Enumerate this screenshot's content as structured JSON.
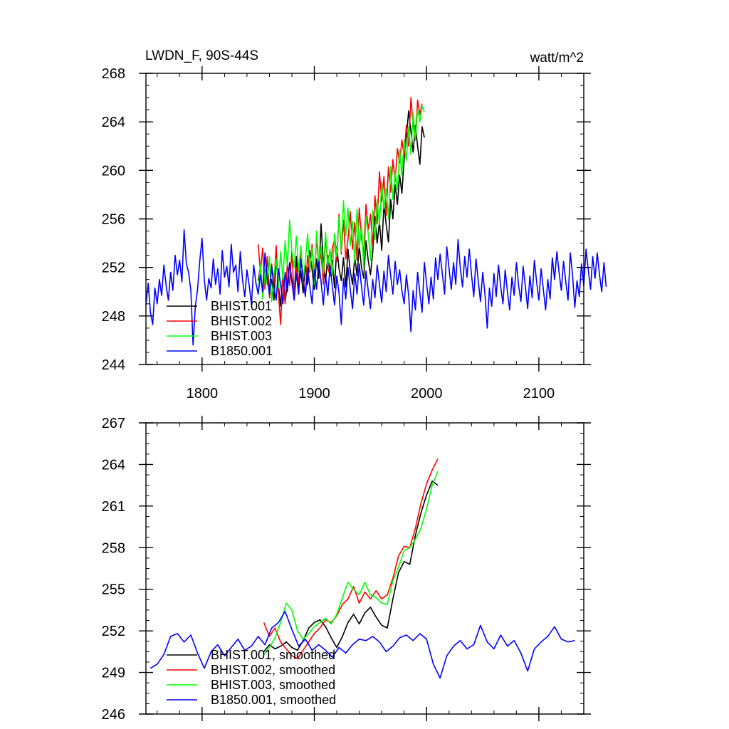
{
  "figure": {
    "left_title": "LWDN_F, 90S-44S",
    "right_title": "watt/m^2"
  },
  "chart_data": [
    {
      "type": "line",
      "title": "LWDN_F, 90S-44S",
      "units": "watt/m^2",
      "xlim": [
        1750,
        2140
      ],
      "ylim": [
        244,
        268
      ],
      "x_ticks": [
        1800,
        1900,
        2000,
        2100
      ],
      "y_ticks": [
        244,
        248,
        252,
        256,
        260,
        264,
        268
      ],
      "legend_position": "bottom-left",
      "series": [
        {
          "name": "BHIST.001",
          "color": "#000000",
          "x_start": 1850,
          "step": 2,
          "values": [
            250.9,
            252.1,
            249.8,
            251.3,
            252.6,
            250.2,
            251.0,
            249.3,
            252.8,
            250.5,
            248.8,
            251.4,
            249.1,
            250.7,
            252.3,
            251.0,
            249.6,
            252.9,
            250.2,
            251.7,
            249.9,
            252.2,
            250.6,
            253.4,
            251.8,
            250.2,
            252.7,
            251.1,
            255.6,
            252.3,
            250.8,
            253.0,
            251.5,
            252.6,
            250.3,
            253.7,
            251.9,
            250.9,
            252.8,
            250.4,
            253.5,
            251.7,
            250.6,
            252.9,
            251.3,
            253.8,
            252.0,
            251.1,
            254.2,
            252.6,
            251.4,
            253.2,
            256.2,
            254.0,
            255.8,
            253.4,
            257.3,
            255.5,
            254.1,
            257.6,
            256.0,
            258.8,
            257.2,
            259.6,
            258.1,
            260.9,
            262.8,
            264.9,
            263.2,
            261.5,
            263.7,
            262.0,
            260.5,
            263.6,
            262.7
          ]
        },
        {
          "name": "BHIST.002",
          "color": "#ff0000",
          "x_start": 1850,
          "step": 2,
          "values": [
            253.9,
            251.6,
            253.6,
            250.2,
            252.9,
            249.5,
            252.3,
            250.6,
            253.8,
            249.9,
            247.3,
            251.5,
            249.0,
            252.4,
            250.5,
            253.3,
            249.6,
            252.0,
            250.7,
            253.5,
            251.2,
            249.7,
            253.0,
            251.6,
            253.9,
            251.1,
            254.4,
            252.2,
            253.2,
            250.6,
            254.6,
            252.0,
            251.3,
            253.6,
            254.3,
            252.5,
            256.4,
            253.1,
            255.9,
            252.7,
            254.3,
            256.6,
            253.5,
            255.7,
            252.6,
            256.9,
            254.4,
            253.1,
            257.2,
            255.1,
            256.4,
            253.8,
            257.9,
            255.6,
            259.9,
            257.4,
            259.5,
            256.3,
            260.3,
            258.2,
            260.9,
            259.1,
            261.8,
            260.6,
            262.5,
            261.2,
            263.7,
            262.0,
            266.0,
            263.8,
            262.5,
            265.8,
            264.6,
            265.5
          ]
        },
        {
          "name": "BHIST.003",
          "color": "#00ff00",
          "x_start": 1850,
          "step": 2,
          "values": [
            250.0,
            252.3,
            249.4,
            251.8,
            250.6,
            252.9,
            249.2,
            251.4,
            252.7,
            250.3,
            253.3,
            251.0,
            254.2,
            252.1,
            255.9,
            253.4,
            252.0,
            254.6,
            251.7,
            253.8,
            250.9,
            252.5,
            254.8,
            251.8,
            253.6,
            250.6,
            255.0,
            252.4,
            253.7,
            251.5,
            254.9,
            252.2,
            253.5,
            251.3,
            254.8,
            252.9,
            256.2,
            253.3,
            257.5,
            254.6,
            256.9,
            253.8,
            255.8,
            252.4,
            256.8,
            253.6,
            255.4,
            252.0,
            256.2,
            254.8,
            252.6,
            256.7,
            254.3,
            257.6,
            255.5,
            259.0,
            256.8,
            258.5,
            256.0,
            260.3,
            257.6,
            259.9,
            258.4,
            261.7,
            259.6,
            262.5,
            260.8,
            263.6,
            261.3,
            264.7,
            262.5,
            265.0,
            264.0,
            265.3,
            264.8
          ]
        },
        {
          "name": "B1850.001",
          "color": "#0000ff",
          "x_start": 1750,
          "step": 2,
          "values": [
            248.9,
            250.7,
            248.3,
            247.3,
            250.3,
            249.0,
            251.0,
            249.7,
            252.2,
            250.5,
            249.3,
            251.6,
            250.1,
            253.0,
            251.4,
            252.6,
            250.8,
            255.1,
            252.3,
            251.6,
            250.1,
            245.6,
            248.8,
            250.2,
            252.6,
            254.4,
            251.0,
            249.3,
            251.1,
            250.3,
            252.7,
            250.6,
            251.9,
            249.8,
            253.4,
            251.2,
            252.1,
            250.4,
            253.9,
            251.6,
            252.2,
            250.0,
            253.3,
            251.0,
            249.6,
            251.8,
            250.5,
            248.9,
            252.2,
            250.7,
            249.8,
            251.4,
            250.0,
            253.2,
            251.1,
            249.8,
            252.1,
            250.3,
            249.3,
            251.9,
            250.6,
            249.0,
            251.6,
            250.0,
            252.4,
            250.8,
            249.3,
            251.5,
            249.8,
            252.7,
            251.0,
            249.6,
            252.0,
            250.4,
            249.0,
            251.8,
            250.2,
            252.5,
            250.8,
            248.9,
            251.4,
            249.7,
            252.1,
            250.5,
            248.9,
            251.3,
            249.9,
            247.3,
            251.1,
            249.4,
            252.0,
            250.2,
            248.6,
            251.5,
            249.8,
            252.3,
            250.4,
            248.9,
            251.7,
            250.1,
            248.6,
            251.0,
            249.5,
            252.2,
            250.6,
            249.1,
            251.7,
            250.0,
            253.0,
            251.3,
            249.8,
            252.5,
            250.6,
            251.8,
            250.1,
            249.0,
            251.4,
            249.7,
            246.7,
            250.1,
            248.5,
            251.6,
            249.9,
            248.3,
            252.4,
            250.7,
            249.0,
            251.2,
            249.4,
            252.8,
            251.0,
            253.1,
            251.5,
            249.8,
            253.7,
            251.9,
            250.2,
            252.4,
            250.6,
            254.3,
            252.0,
            250.4,
            252.9,
            251.2,
            253.5,
            251.4,
            249.6,
            252.7,
            250.9,
            249.2,
            251.6,
            249.8,
            247.0,
            250.3,
            248.8,
            251.5,
            249.6,
            252.2,
            250.4,
            249.0,
            251.8,
            250.0,
            248.5,
            251.2,
            249.7,
            252.4,
            250.5,
            249.2,
            252.1,
            250.4,
            248.6,
            251.3,
            249.5,
            252.6,
            250.8,
            249.3,
            251.9,
            250.2,
            248.5,
            251.0,
            249.4,
            252.8,
            251.0,
            253.3,
            251.6,
            250.1,
            252.5,
            250.8,
            249.3,
            253.2,
            251.4,
            248.7,
            250.9,
            249.6,
            252.3,
            250.5,
            253.5,
            251.8,
            250.2,
            252.9,
            251.1,
            253.2,
            251.4,
            250.0,
            252.4,
            250.4
          ]
        }
      ]
    },
    {
      "type": "line",
      "title": "",
      "xlim": [
        1750,
        2140
      ],
      "ylim": [
        246,
        267
      ],
      "x_ticks": [
        1800,
        1900,
        2000,
        2100
      ],
      "y_ticks": [
        246,
        249,
        252,
        255,
        258,
        261,
        264,
        267
      ],
      "legend_position": "bottom-left",
      "series": [
        {
          "name": "BHIST.001, smoothed",
          "color": "#000000",
          "x": [
            1855,
            1860,
            1865,
            1870,
            1875,
            1880,
            1885,
            1890,
            1895,
            1900,
            1905,
            1910,
            1915,
            1920,
            1925,
            1930,
            1935,
            1940,
            1945,
            1950,
            1955,
            1960,
            1965,
            1970,
            1975,
            1980,
            1985,
            1990,
            1995,
            2000,
            2005,
            2010
          ],
          "y": [
            250.5,
            251.0,
            250.7,
            250.9,
            251.2,
            250.8,
            250.6,
            251.3,
            252.2,
            252.6,
            252.8,
            252.3,
            251.5,
            250.8,
            251.6,
            252.6,
            253.2,
            252.5,
            253.3,
            253.7,
            253.0,
            252.4,
            252.2,
            254.3,
            256.2,
            257.0,
            256.8,
            258.9,
            260.5,
            261.8,
            262.8,
            262.5
          ]
        },
        {
          "name": "BHIST.002, smoothed",
          "color": "#ff0000",
          "x": [
            1855,
            1860,
            1865,
            1870,
            1875,
            1880,
            1885,
            1890,
            1895,
            1900,
            1905,
            1910,
            1915,
            1920,
            1925,
            1930,
            1935,
            1940,
            1945,
            1950,
            1955,
            1960,
            1965,
            1970,
            1975,
            1980,
            1985,
            1990,
            1995,
            2000,
            2005,
            2010
          ],
          "y": [
            252.6,
            251.6,
            252.2,
            251.2,
            250.7,
            250.2,
            250.0,
            250.6,
            251.2,
            251.8,
            252.2,
            252.8,
            252.6,
            253.1,
            253.9,
            254.3,
            255.2,
            254.0,
            254.8,
            254.3,
            254.9,
            254.3,
            254.6,
            255.8,
            257.4,
            258.1,
            258.0,
            259.4,
            261.2,
            262.6,
            263.6,
            264.4
          ]
        },
        {
          "name": "BHIST.003, smoothed",
          "color": "#00ff00",
          "x": [
            1855,
            1860,
            1865,
            1870,
            1875,
            1880,
            1885,
            1890,
            1895,
            1900,
            1905,
            1910,
            1915,
            1920,
            1925,
            1930,
            1935,
            1940,
            1945,
            1950,
            1955,
            1960,
            1965,
            1970,
            1975,
            1980,
            1985,
            1990,
            1995,
            2000,
            2005,
            2010
          ],
          "y": [
            250.3,
            250.8,
            251.5,
            252.6,
            254.0,
            253.5,
            252.0,
            251.4,
            251.8,
            252.3,
            252.6,
            252.9,
            252.5,
            253.2,
            254.4,
            255.5,
            255.0,
            254.6,
            255.5,
            254.6,
            254.4,
            254.0,
            253.9,
            255.6,
            256.6,
            257.8,
            258.0,
            258.6,
            259.4,
            260.8,
            262.5,
            263.5
          ]
        },
        {
          "name": "B1850.001, smoothed",
          "color": "#0000ff",
          "x": [
            1754,
            1760,
            1766,
            1772,
            1778,
            1784,
            1790,
            1796,
            1802,
            1808,
            1814,
            1820,
            1826,
            1832,
            1838,
            1844,
            1850,
            1856,
            1862,
            1868,
            1874,
            1880,
            1886,
            1892,
            1898,
            1904,
            1910,
            1916,
            1922,
            1928,
            1934,
            1940,
            1946,
            1952,
            1958,
            1964,
            1970,
            1976,
            1982,
            1988,
            1994,
            2000,
            2006,
            2012,
            2018,
            2024,
            2030,
            2036,
            2042,
            2048,
            2054,
            2060,
            2066,
            2072,
            2078,
            2084,
            2090,
            2096,
            2102,
            2108,
            2114,
            2120,
            2126,
            2132
          ],
          "y": [
            249.3,
            249.6,
            250.3,
            251.6,
            251.8,
            251.2,
            251.7,
            250.4,
            249.3,
            250.5,
            251.0,
            250.2,
            250.8,
            251.4,
            250.6,
            250.9,
            251.6,
            251.0,
            252.2,
            252.6,
            253.4,
            252.1,
            250.9,
            251.4,
            250.6,
            251.0,
            250.6,
            250.1,
            250.8,
            250.4,
            251.0,
            251.4,
            251.3,
            251.6,
            251.2,
            250.5,
            250.9,
            251.5,
            251.7,
            251.3,
            251.8,
            251.4,
            249.6,
            248.6,
            250.2,
            250.9,
            251.3,
            250.7,
            251.0,
            252.4,
            251.2,
            250.7,
            251.7,
            250.9,
            251.3,
            250.4,
            249.1,
            250.7,
            251.2,
            251.6,
            252.3,
            251.4,
            251.2,
            251.3
          ]
        }
      ]
    }
  ]
}
